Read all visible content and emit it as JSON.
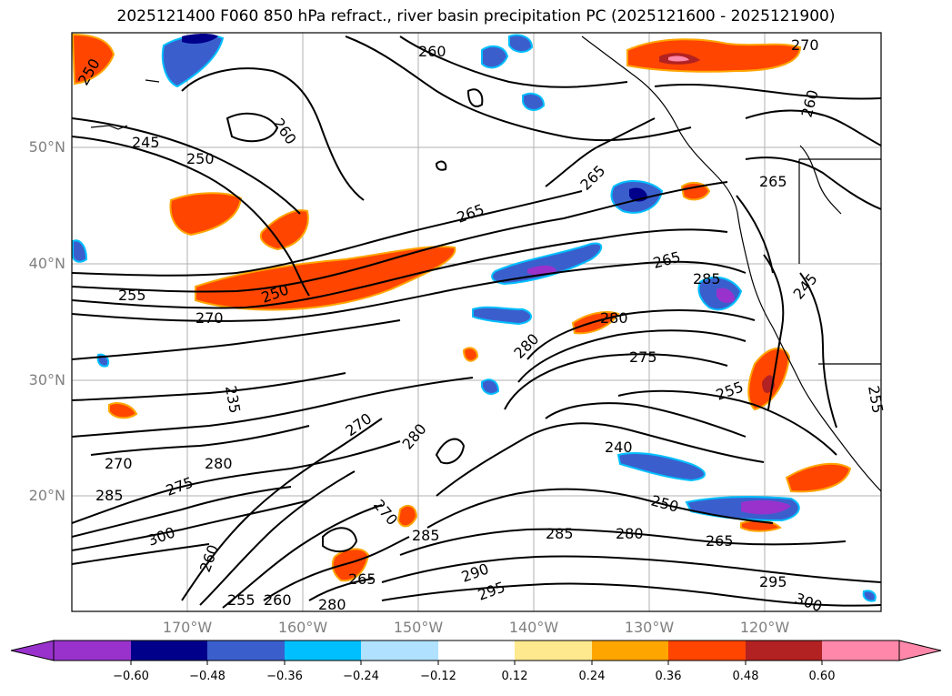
{
  "title": "2025121400 F060 850 hPa refract., river basin precipitation PC (2025121600 - 2025121900)",
  "map": {
    "lat_labels": [
      "50°N",
      "40°N",
      "30°N",
      "20°N"
    ],
    "lon_labels": [
      "170°W",
      "160°W",
      "150°W",
      "140°W",
      "130°W",
      "120°W"
    ],
    "contour_labels": [
      "250",
      "245",
      "250",
      "260",
      "260",
      "270",
      "265",
      "265",
      "265",
      "255",
      "250",
      "270",
      "280",
      "285",
      "280",
      "275",
      "255",
      "235",
      "240",
      "250",
      "265",
      "285",
      "280",
      "290",
      "295",
      "300",
      "295",
      "300",
      "270",
      "275",
      "280",
      "285",
      "260",
      "255",
      "260",
      "280",
      "265",
      "270",
      "285",
      "270",
      "280",
      "265",
      "245",
      "255",
      "260"
    ]
  },
  "colorbar": {
    "tick_labels": [
      "−0.60",
      "−0.48",
      "−0.36",
      "−0.24",
      "−0.12",
      "0.12",
      "0.24",
      "0.36",
      "0.48",
      "0.60"
    ],
    "colors": [
      "#9932cc",
      "#00008b",
      "#3a5fcd",
      "#00bfff",
      "#b0e2ff",
      "#ffffff",
      "#ffe98f",
      "#ffa500",
      "#ff4500",
      "#b22222",
      "#ff88aa"
    ]
  }
}
